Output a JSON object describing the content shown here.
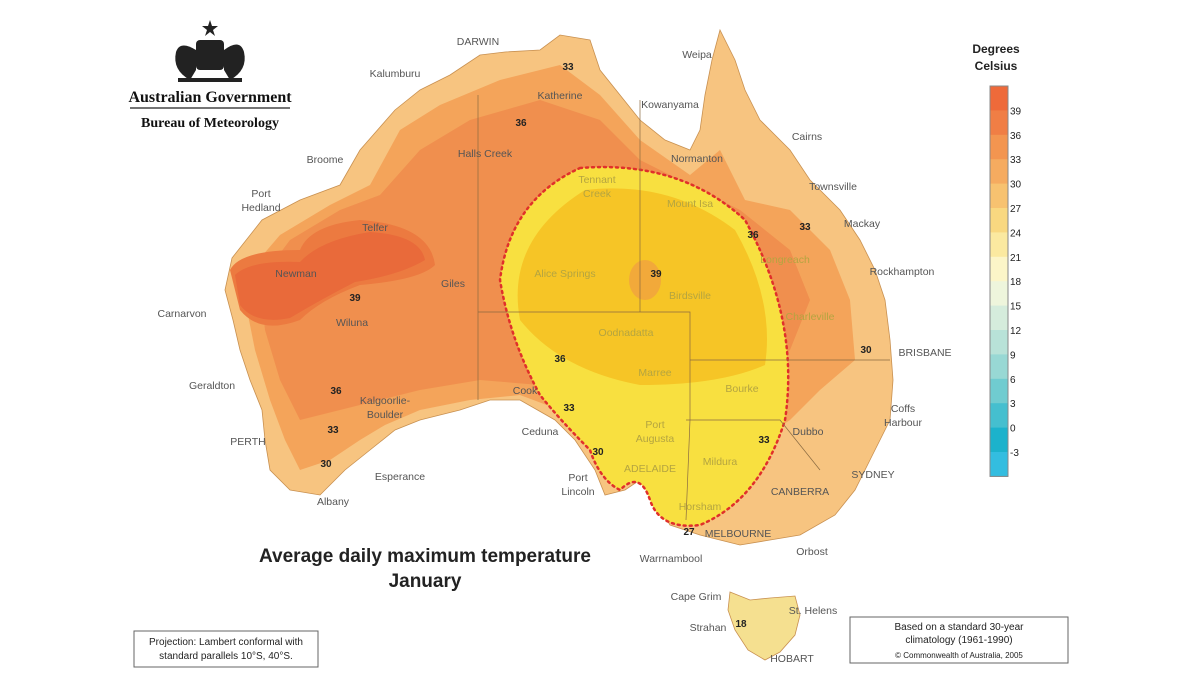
{
  "logo": {
    "line1": "Australian Government",
    "line2": "Bureau of Meteorology"
  },
  "title": {
    "line1": "Average daily maximum temperature",
    "line2": "January"
  },
  "legend": {
    "title": [
      "Degrees",
      "Celsius"
    ],
    "ticks": [
      39,
      36,
      33,
      30,
      27,
      24,
      21,
      18,
      15,
      12,
      9,
      6,
      3,
      0,
      -3
    ]
  },
  "places": [
    [
      "DARWIN"
    ],
    [
      "Weipa"
    ],
    [
      "Kalumburu"
    ],
    [
      "Katherine"
    ],
    [
      "Kowanyama"
    ],
    [
      "Cairns"
    ],
    [
      "Broome"
    ],
    [
      "Halls Creek"
    ],
    [
      "Normanton"
    ],
    [
      "Townsville"
    ],
    [
      "Port",
      "Hedland"
    ],
    [
      "Tennant",
      "Creek"
    ],
    [
      "Mount Isa"
    ],
    [
      "Mackay"
    ],
    [
      "Telfer"
    ],
    [
      "Alice Springs"
    ],
    [
      "Longreach"
    ],
    [
      "Rockhampton"
    ],
    [
      "Newman"
    ],
    [
      "Giles"
    ],
    [
      "Birdsville"
    ],
    [
      "Carnarvon"
    ],
    [
      "Wiluna"
    ],
    [
      "Charleville"
    ],
    [
      "Oodnadatta"
    ],
    [
      "BRISBANE"
    ],
    [
      "Geraldton"
    ],
    [
      "Marree"
    ],
    [
      "Bourke"
    ],
    [
      "Cook"
    ],
    [
      "Kalgoorlie-",
      "Boulder"
    ],
    [
      "Coffs",
      "Harbour"
    ],
    [
      "Port",
      "Augusta"
    ],
    [
      "Dubbo"
    ],
    [
      "Ceduna"
    ],
    [
      "PERTH"
    ],
    [
      "Mildura"
    ],
    [
      "ADELAIDE"
    ],
    [
      "SYDNEY"
    ],
    [
      "Esperance"
    ],
    [
      "Port",
      "Lincoln"
    ],
    [
      "CANBERRA"
    ],
    [
      "Albany"
    ],
    [
      "Horsham"
    ],
    [
      "MELBOURNE"
    ],
    [
      "Orbost"
    ],
    [
      "Warrnambool"
    ],
    [
      "Cape Grim"
    ],
    [
      "St. Helens"
    ],
    [
      "Strahan"
    ],
    [
      "HOBART"
    ]
  ],
  "contours": [
    33,
    36,
    39,
    36,
    33,
    30,
    36,
    33,
    39,
    36,
    33,
    30,
    33,
    30,
    27,
    18
  ],
  "projection_note": [
    "Projection: Lambert conformal with",
    "standard parallels 10°S, 40°S."
  ],
  "source_note": [
    "Based on a standard 30-year",
    "climatology (1961-1990)",
    "© Commonwealth of Australia, 2005"
  ]
}
